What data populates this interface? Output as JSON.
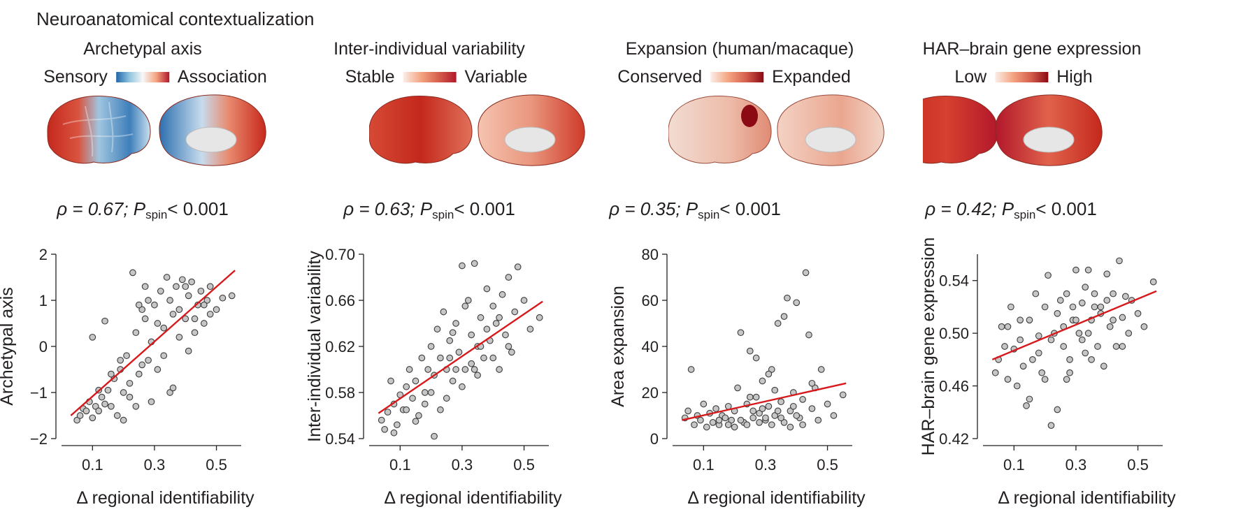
{
  "figure_title": "Neuroanatomical contextualization",
  "colors": {
    "fit_line": "#d7191c",
    "point_fill": "#c6c6c6",
    "point_stroke": "#3a3a3a"
  },
  "panels": [
    {
      "map_title": "Archetypal axis",
      "legend_low": "Sensory",
      "legend_high": "Association",
      "colormap": "blue-white-red",
      "stat": {
        "rho_label": "ρ = 0.67; ",
        "p_symbol": "P",
        "p_sub": "spin",
        "p_value": "< 0.001"
      }
    },
    {
      "map_title": "Inter-individual variability",
      "legend_low": "Stable",
      "legend_high": "Variable",
      "colormap": "white-red",
      "stat": {
        "rho_label": "ρ = 0.63; ",
        "p_symbol": "P",
        "p_sub": "spin",
        "p_value": "< 0.001"
      }
    },
    {
      "map_title": "Expansion (human/macaque)",
      "legend_low": "Conserved",
      "legend_high": "Expanded",
      "colormap": "white-red",
      "stat": {
        "rho_label": "ρ = 0.35; ",
        "p_symbol": "P",
        "p_sub": "spin",
        "p_value": "< 0.001"
      }
    },
    {
      "map_title": "HAR–brain gene expression",
      "legend_low": "Low",
      "legend_high": "High",
      "colormap": "white-red",
      "stat": {
        "rho_label": "ρ = 0.42; ",
        "p_symbol": "P",
        "p_sub": "spin",
        "p_value": "< 0.001"
      }
    }
  ],
  "chart_data": [
    {
      "type": "scatter",
      "xlabel": "Δ regional identifiability",
      "ylabel": "Archetypal axis",
      "xlim": [
        0,
        0.58
      ],
      "ylim": [
        -2,
        2
      ],
      "xticks": [
        0.1,
        0.3,
        0.5
      ],
      "xtick_labels": [
        "0.1",
        "0.3",
        "0.5"
      ],
      "yticks": [
        -2,
        -1,
        0,
        1,
        2
      ],
      "ytick_labels": [
        "−2",
        "−1",
        "0",
        "1",
        "2"
      ],
      "fit": {
        "x": [
          0.03,
          0.56
        ],
        "y": [
          -1.5,
          1.65
        ]
      },
      "points": [
        [
          0.05,
          -1.6
        ],
        [
          0.06,
          -1.5
        ],
        [
          0.07,
          -1.35
        ],
        [
          0.08,
          -1.4
        ],
        [
          0.09,
          -1.2
        ],
        [
          0.1,
          -1.55
        ],
        [
          0.11,
          -1.3
        ],
        [
          0.12,
          -1.4
        ],
        [
          0.13,
          -1.1
        ],
        [
          0.14,
          -1.25
        ],
        [
          0.15,
          -0.95
        ],
        [
          0.16,
          -1.3
        ],
        [
          0.17,
          -0.7
        ],
        [
          0.18,
          -1.5
        ],
        [
          0.19,
          -0.5
        ],
        [
          0.2,
          -1.6
        ],
        [
          0.21,
          -0.2
        ],
        [
          0.22,
          -0.8
        ],
        [
          0.23,
          1.6
        ],
        [
          0.24,
          0.3
        ],
        [
          0.25,
          -0.6
        ],
        [
          0.26,
          0.8
        ],
        [
          0.27,
          1.3
        ],
        [
          0.28,
          -0.3
        ],
        [
          0.29,
          0.1
        ],
        [
          0.3,
          0.9
        ],
        [
          0.31,
          -0.5
        ],
        [
          0.32,
          1.2
        ],
        [
          0.33,
          0.4
        ],
        [
          0.34,
          1.5
        ],
        [
          0.35,
          -1.0
        ],
        [
          0.36,
          0.7
        ],
        [
          0.37,
          1.3
        ],
        [
          0.38,
          0.2
        ],
        [
          0.39,
          1.45
        ],
        [
          0.4,
          0.6
        ],
        [
          0.41,
          1.1
        ],
        [
          0.42,
          1.4
        ],
        [
          0.43,
          0.3
        ],
        [
          0.44,
          0.9
        ],
        [
          0.45,
          1.2
        ],
        [
          0.46,
          0.5
        ],
        [
          0.47,
          1.0
        ],
        [
          0.48,
          1.3
        ],
        [
          0.5,
          0.8
        ],
        [
          0.52,
          1.05
        ],
        [
          0.55,
          1.1
        ],
        [
          0.1,
          0.2
        ],
        [
          0.14,
          0.55
        ],
        [
          0.12,
          -0.95
        ],
        [
          0.2,
          -1.0
        ],
        [
          0.25,
          0.9
        ],
        [
          0.28,
          1.0
        ],
        [
          0.22,
          -1.1
        ],
        [
          0.26,
          -0.4
        ],
        [
          0.31,
          0.5
        ],
        [
          0.36,
          -0.9
        ],
        [
          0.33,
          -0.2
        ],
        [
          0.38,
          0.8
        ],
        [
          0.41,
          -0.1
        ],
        [
          0.43,
          0.6
        ],
        [
          0.46,
          0.9
        ],
        [
          0.48,
          0.7
        ],
        [
          0.24,
          -1.3
        ],
        [
          0.19,
          -0.3
        ],
        [
          0.29,
          -1.2
        ],
        [
          0.35,
          1.0
        ],
        [
          0.4,
          1.3
        ],
        [
          0.16,
          -0.6
        ],
        [
          0.27,
          0.6
        ]
      ]
    },
    {
      "type": "scatter",
      "xlabel": "Δ regional identifiability",
      "ylabel": "Inter-individual variability",
      "xlim": [
        0,
        0.58
      ],
      "ylim": [
        0.54,
        0.7
      ],
      "xticks": [
        0.1,
        0.3,
        0.5
      ],
      "xtick_labels": [
        "0.1",
        "0.3",
        "0.5"
      ],
      "yticks": [
        0.54,
        0.58,
        0.62,
        0.66,
        0.7
      ],
      "ytick_labels": [
        "0.54",
        "0.58",
        "0.62",
        "0.66",
        "0.70"
      ],
      "fit": {
        "x": [
          0.03,
          0.56
        ],
        "y": [
          0.562,
          0.659
        ]
      },
      "points": [
        [
          0.04,
          0.556
        ],
        [
          0.05,
          0.548
        ],
        [
          0.06,
          0.563
        ],
        [
          0.07,
          0.59
        ],
        [
          0.08,
          0.57
        ],
        [
          0.09,
          0.552
        ],
        [
          0.1,
          0.578
        ],
        [
          0.11,
          0.565
        ],
        [
          0.12,
          0.585
        ],
        [
          0.13,
          0.6
        ],
        [
          0.14,
          0.575
        ],
        [
          0.15,
          0.59
        ],
        [
          0.16,
          0.56
        ],
        [
          0.17,
          0.61
        ],
        [
          0.18,
          0.58
        ],
        [
          0.19,
          0.6
        ],
        [
          0.2,
          0.62
        ],
        [
          0.21,
          0.595
        ],
        [
          0.22,
          0.635
        ],
        [
          0.23,
          0.61
        ],
        [
          0.24,
          0.65
        ],
        [
          0.25,
          0.6
        ],
        [
          0.26,
          0.625
        ],
        [
          0.27,
          0.59
        ],
        [
          0.28,
          0.64
        ],
        [
          0.29,
          0.615
        ],
        [
          0.3,
          0.69
        ],
        [
          0.31,
          0.6
        ],
        [
          0.32,
          0.66
        ],
        [
          0.33,
          0.63
        ],
        [
          0.34,
          0.692
        ],
        [
          0.35,
          0.62
        ],
        [
          0.36,
          0.645
        ],
        [
          0.37,
          0.61
        ],
        [
          0.38,
          0.67
        ],
        [
          0.39,
          0.625
        ],
        [
          0.4,
          0.655
        ],
        [
          0.41,
          0.64
        ],
        [
          0.42,
          0.6
        ],
        [
          0.43,
          0.665
        ],
        [
          0.44,
          0.63
        ],
        [
          0.45,
          0.68
        ],
        [
          0.46,
          0.615
        ],
        [
          0.47,
          0.65
        ],
        [
          0.48,
          0.689
        ],
        [
          0.5,
          0.66
        ],
        [
          0.52,
          0.635
        ],
        [
          0.55,
          0.645
        ],
        [
          0.15,
          0.555
        ],
        [
          0.2,
          0.58
        ],
        [
          0.25,
          0.575
        ],
        [
          0.3,
          0.585
        ],
        [
          0.35,
          0.595
        ],
        [
          0.4,
          0.61
        ],
        [
          0.45,
          0.62
        ],
        [
          0.28,
          0.6
        ],
        [
          0.33,
          0.605
        ],
        [
          0.38,
          0.635
        ],
        [
          0.23,
          0.565
        ],
        [
          0.18,
          0.57
        ],
        [
          0.42,
          0.645
        ],
        [
          0.36,
          0.62
        ],
        [
          0.27,
          0.632
        ],
        [
          0.31,
          0.655
        ],
        [
          0.12,
          0.565
        ],
        [
          0.08,
          0.545
        ],
        [
          0.21,
          0.542
        ],
        [
          0.26,
          0.61
        ],
        [
          0.34,
          0.6
        ]
      ]
    },
    {
      "type": "scatter",
      "xlabel": "Δ regional identifiability",
      "ylabel": "Area expansion",
      "xlim": [
        0,
        0.58
      ],
      "ylim": [
        0,
        80
      ],
      "xticks": [
        0.1,
        0.3,
        0.5
      ],
      "xtick_labels": [
        "0.1",
        "0.3",
        "0.5"
      ],
      "yticks": [
        0,
        20,
        40,
        60,
        80
      ],
      "ytick_labels": [
        "0",
        "20",
        "40",
        "60",
        "80"
      ],
      "fit": {
        "x": [
          0.03,
          0.56
        ],
        "y": [
          8,
          24
        ]
      },
      "points": [
        [
          0.04,
          9
        ],
        [
          0.05,
          12
        ],
        [
          0.06,
          30
        ],
        [
          0.07,
          6
        ],
        [
          0.08,
          10
        ],
        [
          0.09,
          8
        ],
        [
          0.1,
          15
        ],
        [
          0.11,
          5
        ],
        [
          0.12,
          11
        ],
        [
          0.13,
          7
        ],
        [
          0.14,
          13
        ],
        [
          0.15,
          6
        ],
        [
          0.16,
          10
        ],
        [
          0.17,
          9
        ],
        [
          0.18,
          14
        ],
        [
          0.19,
          8
        ],
        [
          0.2,
          12
        ],
        [
          0.21,
          22
        ],
        [
          0.22,
          46
        ],
        [
          0.23,
          7
        ],
        [
          0.24,
          15
        ],
        [
          0.25,
          38
        ],
        [
          0.26,
          9
        ],
        [
          0.27,
          18
        ],
        [
          0.28,
          11
        ],
        [
          0.29,
          25
        ],
        [
          0.3,
          8
        ],
        [
          0.31,
          14
        ],
        [
          0.32,
          30
        ],
        [
          0.33,
          10
        ],
        [
          0.34,
          50
        ],
        [
          0.35,
          16
        ],
        [
          0.36,
          53
        ],
        [
          0.37,
          61
        ],
        [
          0.38,
          12
        ],
        [
          0.39,
          20
        ],
        [
          0.4,
          59
        ],
        [
          0.41,
          9
        ],
        [
          0.42,
          17
        ],
        [
          0.43,
          72
        ],
        [
          0.44,
          45
        ],
        [
          0.45,
          13
        ],
        [
          0.46,
          22
        ],
        [
          0.47,
          8
        ],
        [
          0.48,
          30
        ],
        [
          0.5,
          15
        ],
        [
          0.52,
          10
        ],
        [
          0.55,
          19
        ],
        [
          0.2,
          5
        ],
        [
          0.22,
          8
        ],
        [
          0.24,
          6
        ],
        [
          0.26,
          12
        ],
        [
          0.28,
          7
        ],
        [
          0.3,
          9
        ],
        [
          0.32,
          6
        ],
        [
          0.34,
          12
        ],
        [
          0.36,
          7
        ],
        [
          0.38,
          5
        ],
        [
          0.4,
          10
        ],
        [
          0.42,
          6
        ],
        [
          0.15,
          8
        ],
        [
          0.18,
          6
        ],
        [
          0.27,
          35
        ],
        [
          0.31,
          28
        ],
        [
          0.33,
          21
        ],
        [
          0.25,
          18
        ],
        [
          0.35,
          9
        ],
        [
          0.45,
          24
        ],
        [
          0.29,
          13
        ],
        [
          0.39,
          14
        ]
      ]
    },
    {
      "type": "scatter",
      "xlabel": "Δ regional identifiability",
      "ylabel": "HAR–brain gene expression",
      "xlim": [
        0,
        0.58
      ],
      "ylim": [
        0.42,
        0.56
      ],
      "xticks": [
        0.1,
        0.3,
        0.5
      ],
      "xtick_labels": [
        "0.1",
        "0.3",
        "0.5"
      ],
      "yticks": [
        0.42,
        0.46,
        0.5,
        0.54
      ],
      "ytick_labels": [
        "0.42",
        "0.46",
        "0.50",
        "0.54"
      ],
      "fit": {
        "x": [
          0.03,
          0.56
        ],
        "y": [
          0.48,
          0.532
        ]
      },
      "points": [
        [
          0.04,
          0.47
        ],
        [
          0.05,
          0.48
        ],
        [
          0.06,
          0.505
        ],
        [
          0.07,
          0.49
        ],
        [
          0.08,
          0.465
        ],
        [
          0.09,
          0.52
        ],
        [
          0.1,
          0.488
        ],
        [
          0.11,
          0.46
        ],
        [
          0.12,
          0.495
        ],
        [
          0.13,
          0.475
        ],
        [
          0.14,
          0.445
        ],
        [
          0.15,
          0.51
        ],
        [
          0.16,
          0.48
        ],
        [
          0.17,
          0.53
        ],
        [
          0.18,
          0.498
        ],
        [
          0.19,
          0.47
        ],
        [
          0.2,
          0.52
        ],
        [
          0.21,
          0.544
        ],
        [
          0.22,
          0.43
        ],
        [
          0.23,
          0.5
        ],
        [
          0.24,
          0.442
        ],
        [
          0.25,
          0.525
        ],
        [
          0.26,
          0.49
        ],
        [
          0.27,
          0.53
        ],
        [
          0.28,
          0.47
        ],
        [
          0.29,
          0.51
        ],
        [
          0.3,
          0.548
        ],
        [
          0.31,
          0.5
        ],
        [
          0.32,
          0.523
        ],
        [
          0.33,
          0.485
        ],
        [
          0.34,
          0.548
        ],
        [
          0.35,
          0.51
        ],
        [
          0.36,
          0.53
        ],
        [
          0.37,
          0.49
        ],
        [
          0.38,
          0.52
        ],
        [
          0.39,
          0.475
        ],
        [
          0.4,
          0.545
        ],
        [
          0.41,
          0.505
        ],
        [
          0.42,
          0.53
        ],
        [
          0.43,
          0.49
        ],
        [
          0.44,
          0.555
        ],
        [
          0.45,
          0.512
        ],
        [
          0.46,
          0.528
        ],
        [
          0.47,
          0.5
        ],
        [
          0.48,
          0.525
        ],
        [
          0.5,
          0.515
        ],
        [
          0.52,
          0.505
        ],
        [
          0.55,
          0.539
        ],
        [
          0.18,
          0.485
        ],
        [
          0.22,
          0.495
        ],
        [
          0.26,
          0.505
        ],
        [
          0.3,
          0.51
        ],
        [
          0.34,
          0.5
        ],
        [
          0.38,
          0.515
        ],
        [
          0.42,
          0.51
        ],
        [
          0.2,
          0.465
        ],
        [
          0.28,
          0.48
        ],
        [
          0.32,
          0.495
        ],
        [
          0.36,
          0.52
        ],
        [
          0.24,
          0.515
        ],
        [
          0.4,
          0.525
        ],
        [
          0.15,
          0.45
        ],
        [
          0.27,
          0.465
        ],
        [
          0.33,
          0.535
        ],
        [
          0.29,
          0.52
        ],
        [
          0.35,
          0.48
        ],
        [
          0.12,
          0.51
        ],
        [
          0.08,
          0.505
        ],
        [
          0.45,
          0.49
        ]
      ]
    }
  ]
}
